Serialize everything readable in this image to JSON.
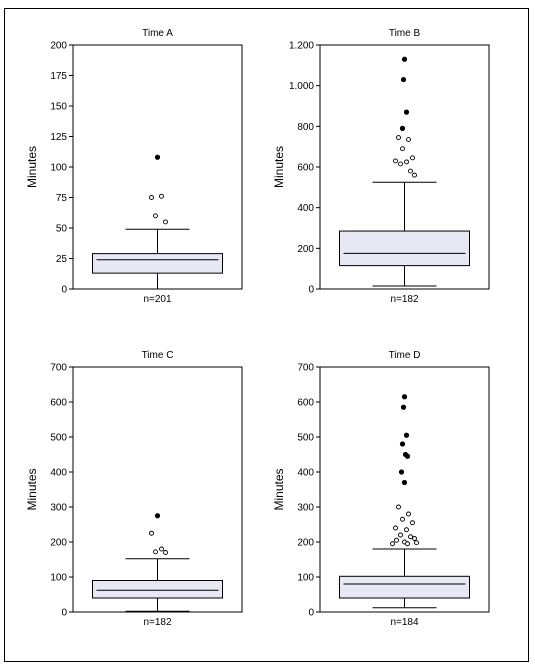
{
  "chart_data": [
    {
      "type": "box",
      "title": "Time A",
      "ylabel": "Minutes",
      "n_label": "n=201",
      "ylim": [
        0,
        200
      ],
      "yticks": [
        0,
        25,
        50,
        75,
        100,
        125,
        150,
        175,
        200
      ],
      "ytick_labels": [
        "0",
        "25",
        "50",
        "75",
        "100",
        "125",
        "150",
        "175",
        "200"
      ],
      "box": {
        "whisker_low": 0,
        "q1": 13,
        "median": 24,
        "q3": 29,
        "whisker_high": 49
      },
      "outliers_open": [
        75,
        76,
        60,
        55
      ],
      "outliers_filled": [
        108
      ]
    },
    {
      "type": "box",
      "title": "Time B",
      "ylabel": "Minutes",
      "n_label": "n=182",
      "ylim": [
        0,
        1200
      ],
      "yticks": [
        0,
        200,
        400,
        600,
        800,
        1000,
        1200
      ],
      "ytick_labels": [
        "0",
        "200",
        "400",
        "600",
        "800",
        "1.000",
        "1.200"
      ],
      "box": {
        "whisker_low": 15,
        "q1": 115,
        "median": 175,
        "q3": 285,
        "whisker_high": 525
      },
      "outliers_open": [
        745,
        735,
        690,
        645,
        630,
        625,
        615,
        580,
        560
      ],
      "outliers_filled": [
        1130,
        1030,
        870,
        790
      ]
    },
    {
      "type": "box",
      "title": "Time C",
      "ylabel": "Minutes",
      "n_label": "n=182",
      "ylim": [
        0,
        700
      ],
      "yticks": [
        0,
        100,
        200,
        300,
        400,
        500,
        600,
        700
      ],
      "ytick_labels": [
        "0",
        "100",
        "200",
        "300",
        "400",
        "500",
        "600",
        "700"
      ],
      "box": {
        "whisker_low": 2,
        "q1": 40,
        "median": 62,
        "q3": 90,
        "whisker_high": 152
      },
      "outliers_open": [
        225,
        180,
        172,
        170
      ],
      "outliers_filled": [
        275
      ]
    },
    {
      "type": "box",
      "title": "Time D",
      "ylabel": "Minutes",
      "n_label": "n=184",
      "ylim": [
        0,
        700
      ],
      "yticks": [
        0,
        100,
        200,
        300,
        400,
        500,
        600,
        700
      ],
      "ytick_labels": [
        "0",
        "100",
        "200",
        "300",
        "400",
        "500",
        "600",
        "700"
      ],
      "box": {
        "whisker_low": 12,
        "q1": 40,
        "median": 80,
        "q3": 102,
        "whisker_high": 180
      },
      "outliers_open": [
        300,
        280,
        265,
        255,
        240,
        235,
        220,
        215,
        210,
        205,
        200,
        198,
        195,
        195
      ],
      "outliers_filled": [
        615,
        585,
        505,
        480,
        450,
        445,
        400,
        370
      ]
    }
  ]
}
